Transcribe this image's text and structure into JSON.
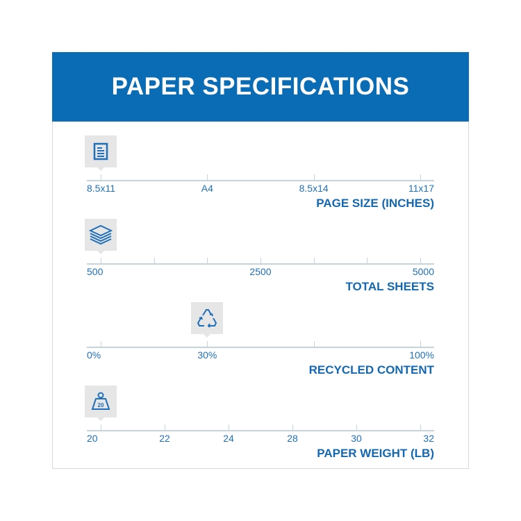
{
  "header": {
    "title": "PAPER SPECIFICATIONS"
  },
  "accent_color": "#0b6cb6",
  "scales": [
    {
      "title": "PAGE SIZE (INCHES)",
      "icon": "document-icon",
      "ticks": [
        "8.5x11",
        "A4",
        "8.5x14",
        "11x17"
      ],
      "selected": "8.5x11"
    },
    {
      "title": "TOTAL SHEETS",
      "icon": "paper-stack-icon",
      "ticks": [
        "500",
        "",
        "",
        "2500",
        "",
        "",
        "5000"
      ],
      "selected": "500"
    },
    {
      "title": "RECYCLED CONTENT",
      "icon": "recycle-icon",
      "ticks": [
        "0%",
        "30%",
        "",
        "100%"
      ],
      "selected": "30%"
    },
    {
      "title": "PAPER WEIGHT (LB)",
      "icon": "weight-icon",
      "icon_text": "20",
      "ticks": [
        "20",
        "22",
        "24",
        "28",
        "30",
        "32"
      ],
      "selected": "20"
    }
  ]
}
